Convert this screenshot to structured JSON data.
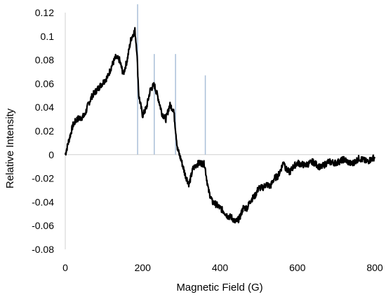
{
  "chart_data": {
    "type": "line",
    "title": "",
    "xlabel": "Magnetic Field (G)",
    "ylabel": "Relative Intensity",
    "xlim": [
      0,
      800
    ],
    "ylim": [
      -0.08,
      0.12
    ],
    "x_ticks": [
      0,
      200,
      400,
      600,
      800
    ],
    "y_ticks": [
      -0.08,
      -0.06,
      -0.04,
      -0.02,
      0,
      0.02,
      0.04,
      0.06,
      0.08,
      0.1,
      0.12
    ],
    "x_tick_labels": [
      "0",
      "200",
      "400",
      "600",
      "800"
    ],
    "y_tick_labels": [
      "-0.08",
      "-0.06",
      "-0.04",
      "-0.02",
      "0",
      "0.02",
      "0.04",
      "0.06",
      "0.08",
      "0.1",
      "0.12"
    ],
    "grid": false,
    "legend": "none",
    "series": [
      {
        "color": "#000000",
        "style": "noisy line",
        "x": [
          0,
          10,
          20,
          30,
          40,
          50,
          60,
          70,
          80,
          90,
          100,
          110,
          120,
          130,
          140,
          150,
          160,
          170,
          180,
          185,
          190,
          200,
          210,
          220,
          230,
          240,
          250,
          260,
          270,
          280,
          290,
          300,
          310,
          320,
          330,
          340,
          350,
          360,
          370,
          380,
          390,
          400,
          410,
          420,
          430,
          440,
          450,
          460,
          470,
          480,
          490,
          500,
          510,
          520,
          530,
          540,
          550,
          560,
          565,
          570,
          580,
          590,
          600,
          620,
          640,
          660,
          680,
          700,
          720,
          740,
          760,
          780,
          800
        ],
        "y": [
          0.0,
          0.013,
          0.025,
          0.03,
          0.031,
          0.033,
          0.043,
          0.05,
          0.054,
          0.058,
          0.062,
          0.066,
          0.075,
          0.082,
          0.08,
          0.068,
          0.08,
          0.098,
          0.105,
          0.088,
          0.05,
          0.033,
          0.04,
          0.055,
          0.059,
          0.048,
          0.035,
          0.03,
          0.042,
          0.038,
          0.005,
          -0.005,
          -0.017,
          -0.025,
          -0.012,
          -0.008,
          -0.007,
          -0.008,
          -0.03,
          -0.04,
          -0.042,
          -0.045,
          -0.048,
          -0.052,
          -0.053,
          -0.057,
          -0.054,
          -0.045,
          -0.045,
          -0.038,
          -0.035,
          -0.028,
          -0.028,
          -0.025,
          -0.027,
          -0.02,
          -0.018,
          -0.01,
          -0.005,
          -0.012,
          -0.015,
          -0.01,
          -0.007,
          -0.009,
          -0.006,
          -0.011,
          -0.006,
          -0.007,
          -0.004,
          -0.008,
          -0.003,
          -0.006,
          -0.002
        ]
      }
    ],
    "markers": [
      {
        "x": 187,
        "top": 0.127,
        "color": "#a9bfd8"
      },
      {
        "x": 230,
        "top": 0.085,
        "color": "#a9bfd8"
      },
      {
        "x": 285,
        "top": 0.085,
        "color": "#a9bfd8"
      },
      {
        "x": 362,
        "top": 0.067,
        "color": "#a9bfd8"
      }
    ]
  }
}
